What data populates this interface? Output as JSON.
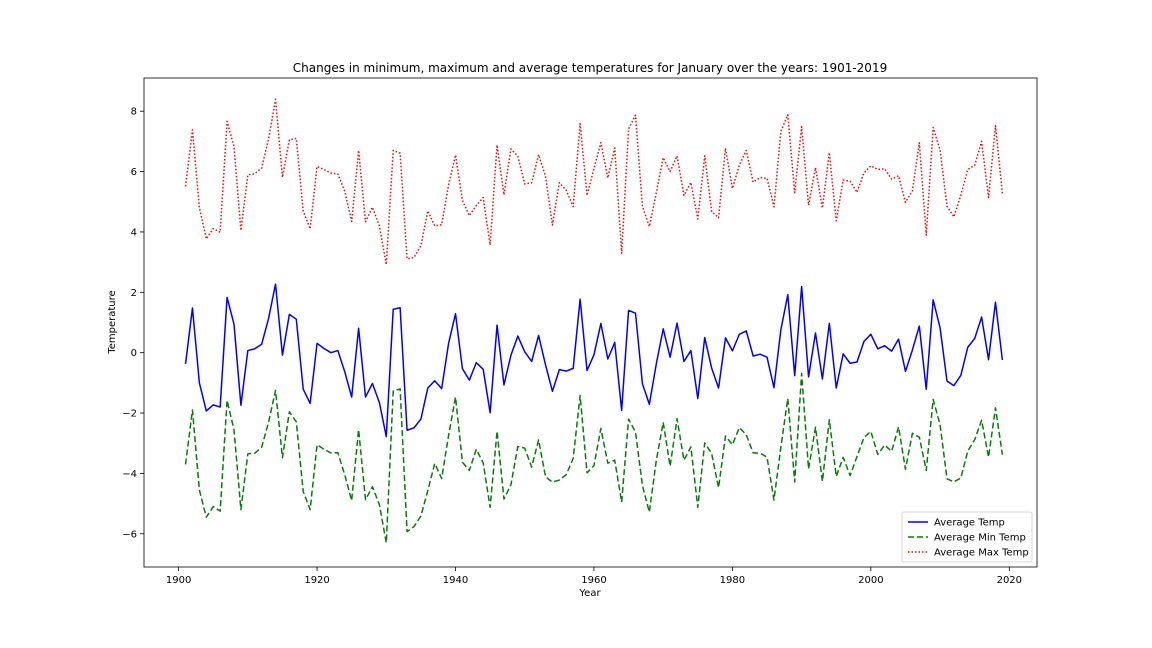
{
  "chart_data": {
    "type": "line",
    "title": "Changes in minimum, maximum and average temperatures for January over the years: 1901-2019",
    "xlabel": "Year",
    "ylabel": "Temperature",
    "xlim": [
      1895,
      2024
    ],
    "ylim": [
      -7.1,
      9.1
    ],
    "xticks": [
      1900,
      1920,
      1940,
      1960,
      1980,
      2000,
      2020
    ],
    "yticks": [
      -6,
      -4,
      -2,
      0,
      2,
      4,
      6,
      8
    ],
    "grid": false,
    "legend_position": "lower-right",
    "x_start": 1901,
    "x_end": 2019,
    "series": [
      {
        "name": "Average Temp",
        "color": "#0000ff",
        "dash": "solid",
        "values": [
          -0.37,
          1.48,
          -1.0,
          -1.93,
          -1.73,
          -1.8,
          1.83,
          0.95,
          -1.74,
          0.07,
          0.13,
          0.28,
          1.14,
          2.27,
          -0.08,
          1.27,
          1.11,
          -1.21,
          -1.68,
          0.31,
          0.14,
          0.0,
          0.07,
          -0.63,
          -1.47,
          0.81,
          -1.47,
          -1.02,
          -1.65,
          -2.78,
          1.44,
          1.49,
          -2.57,
          -2.49,
          -2.2,
          -1.17,
          -0.93,
          -1.19,
          0.31,
          1.29,
          -0.53,
          -0.91,
          -0.33,
          -0.55,
          -1.99,
          0.91,
          -1.07,
          -0.09,
          0.55,
          0.03,
          -0.29,
          0.57,
          -0.4,
          -1.28,
          -0.56,
          -0.61,
          -0.52,
          1.77,
          -0.59,
          -0.07,
          0.97,
          -0.21,
          0.34,
          -1.91,
          1.4,
          1.31,
          -1.03,
          -1.71,
          -0.38,
          0.79,
          -0.15,
          0.98,
          -0.29,
          0.07,
          -1.52,
          0.5,
          -0.51,
          -1.17,
          0.49,
          0.06,
          0.61,
          0.72,
          -0.11,
          -0.05,
          -0.15,
          -1.16,
          0.76,
          1.92,
          -0.76,
          2.19,
          -0.8,
          0.65,
          -0.87,
          0.97,
          -1.17,
          -0.04,
          -0.35,
          -0.31,
          0.37,
          0.61,
          0.13,
          0.23,
          0.05,
          0.45,
          -0.62,
          0.09,
          0.88,
          -1.21,
          1.75,
          0.82,
          -0.94,
          -1.09,
          -0.75,
          0.18,
          0.47,
          1.18,
          -0.23,
          1.67,
          -0.24
        ]
      },
      {
        "name": "Average Min Temp",
        "color": "#008000",
        "dash": "dashed",
        "values": [
          -3.7,
          -1.9,
          -4.55,
          -5.45,
          -5.1,
          -5.25,
          -1.58,
          -2.55,
          -5.2,
          -3.35,
          -3.33,
          -3.13,
          -2.3,
          -1.25,
          -3.48,
          -1.96,
          -2.29,
          -4.6,
          -5.2,
          -3.05,
          -3.2,
          -3.32,
          -3.31,
          -4.05,
          -4.9,
          -2.55,
          -4.87,
          -4.44,
          -5.03,
          -6.3,
          -1.27,
          -1.2,
          -5.93,
          -5.76,
          -5.41,
          -4.57,
          -3.67,
          -4.17,
          -2.74,
          -1.47,
          -3.63,
          -3.9,
          -3.2,
          -3.65,
          -5.12,
          -2.6,
          -4.85,
          -4.38,
          -3.11,
          -3.16,
          -3.79,
          -2.89,
          -4.11,
          -4.29,
          -4.22,
          -4.04,
          -3.5,
          -1.42,
          -3.98,
          -3.74,
          -2.51,
          -3.66,
          -3.56,
          -4.95,
          -2.2,
          -2.63,
          -4.4,
          -5.28,
          -3.58,
          -2.31,
          -3.76,
          -2.19,
          -3.56,
          -3.12,
          -5.12,
          -2.99,
          -3.34,
          -4.47,
          -2.76,
          -3.05,
          -2.48,
          -2.72,
          -3.32,
          -3.33,
          -3.46,
          -4.88,
          -3.13,
          -1.52,
          -4.28,
          -0.69,
          -3.85,
          -2.47,
          -4.26,
          -2.22,
          -4.1,
          -3.47,
          -4.07,
          -3.44,
          -2.81,
          -2.61,
          -3.37,
          -3.06,
          -3.27,
          -2.46,
          -3.86,
          -2.67,
          -2.8,
          -3.9,
          -1.55,
          -2.39,
          -4.18,
          -4.28,
          -4.15,
          -3.26,
          -2.88,
          -2.24,
          -3.46,
          -1.83,
          -3.38
        ]
      },
      {
        "name": "Average Max Temp",
        "color": "#ff0000",
        "dash": "dotted",
        "values": [
          5.51,
          7.38,
          4.8,
          3.77,
          4.11,
          3.99,
          7.66,
          6.83,
          4.05,
          5.89,
          5.93,
          6.12,
          7.09,
          8.39,
          5.81,
          7.05,
          7.1,
          4.69,
          4.1,
          6.17,
          6.07,
          5.95,
          5.92,
          5.35,
          4.35,
          6.7,
          4.34,
          4.82,
          4.2,
          2.92,
          6.7,
          6.61,
          3.11,
          3.15,
          3.54,
          4.7,
          4.2,
          4.24,
          5.56,
          6.55,
          5.04,
          4.54,
          4.87,
          5.14,
          3.57,
          6.88,
          5.23,
          6.75,
          6.51,
          5.59,
          5.63,
          6.56,
          5.85,
          4.23,
          5.63,
          5.38,
          4.84,
          7.59,
          5.21,
          6.1,
          6.96,
          5.79,
          6.78,
          3.3,
          7.41,
          7.87,
          4.85,
          4.18,
          5.29,
          6.46,
          6.0,
          6.52,
          5.21,
          5.64,
          4.43,
          6.52,
          4.68,
          4.47,
          6.77,
          5.44,
          6.21,
          6.7,
          5.65,
          5.8,
          5.78,
          4.83,
          7.33,
          7.88,
          5.3,
          7.49,
          4.88,
          6.13,
          4.79,
          6.63,
          4.37,
          5.72,
          5.68,
          5.31,
          5.96,
          6.19,
          6.07,
          6.09,
          5.75,
          5.86,
          4.98,
          5.36,
          6.95,
          3.9,
          7.46,
          6.71,
          4.85,
          4.5,
          5.22,
          6.07,
          6.21,
          7.0,
          5.14,
          7.52,
          5.28
        ]
      }
    ]
  }
}
